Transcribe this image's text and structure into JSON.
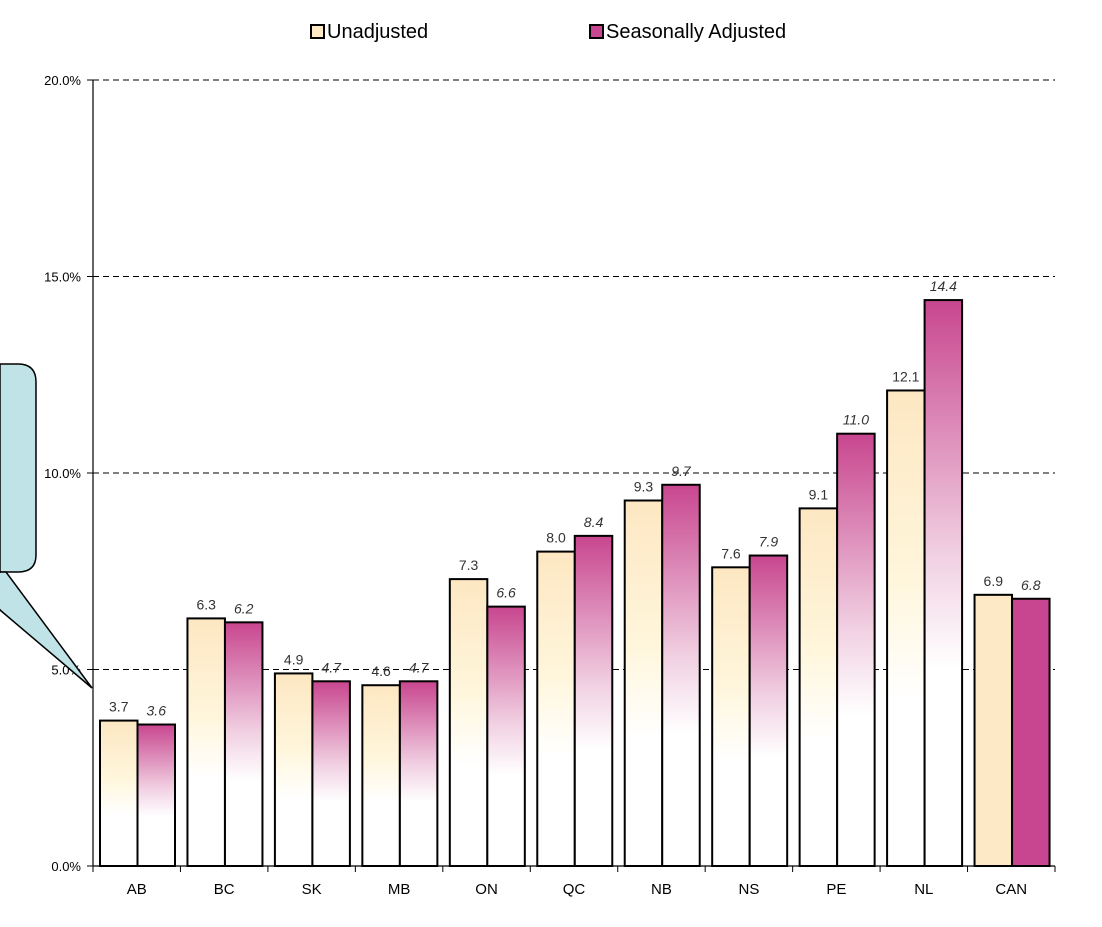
{
  "legend": {
    "unadjusted_label": "Unadjusted",
    "adjusted_label": "Seasonally Adjusted"
  },
  "colors": {
    "unadjusted_top": "#fde9c6",
    "unadjusted_bottom": "#ffffff",
    "adjusted_top": "#c8468f",
    "adjusted_bottom": "#ffffff",
    "solid_unadjusted": "#fde9c6",
    "solid_adjusted": "#c8468f",
    "callout_fill": "#bfe3e6",
    "grid": "#000000"
  },
  "chart_data": {
    "type": "bar",
    "title": "",
    "xlabel": "",
    "ylabel": "",
    "ylim": [
      0,
      20
    ],
    "yticks": [
      "0.0%",
      "5.0%",
      "10.0%",
      "15.0%",
      "20.0%"
    ],
    "grid": "horizontal dashed",
    "legend_position": "top",
    "categories": [
      "AB",
      "BC",
      "SK",
      "MB",
      "ON",
      "QC",
      "NB",
      "NS",
      "PE",
      "NL",
      "CAN"
    ],
    "series": [
      {
        "name": "Unadjusted",
        "values": [
          3.7,
          6.3,
          4.9,
          4.6,
          7.3,
          8.0,
          9.3,
          7.6,
          9.1,
          12.1,
          6.9
        ],
        "labels": [
          "3.7",
          "6.3",
          "4.9",
          "4.6",
          "7.3",
          "8.0",
          "9.3",
          "7.6",
          "9.1",
          "12.1",
          "6.9"
        ]
      },
      {
        "name": "Seasonally Adjusted",
        "values": [
          3.6,
          6.2,
          4.7,
          4.7,
          6.6,
          8.4,
          9.7,
          7.9,
          11.0,
          14.4,
          6.8
        ],
        "labels": [
          "3.6",
          "6.2",
          "4.7",
          "4.7",
          "6.6",
          "8.4",
          "9.7",
          "7.9",
          "11.0",
          "14.4",
          "6.8"
        ]
      }
    ]
  }
}
